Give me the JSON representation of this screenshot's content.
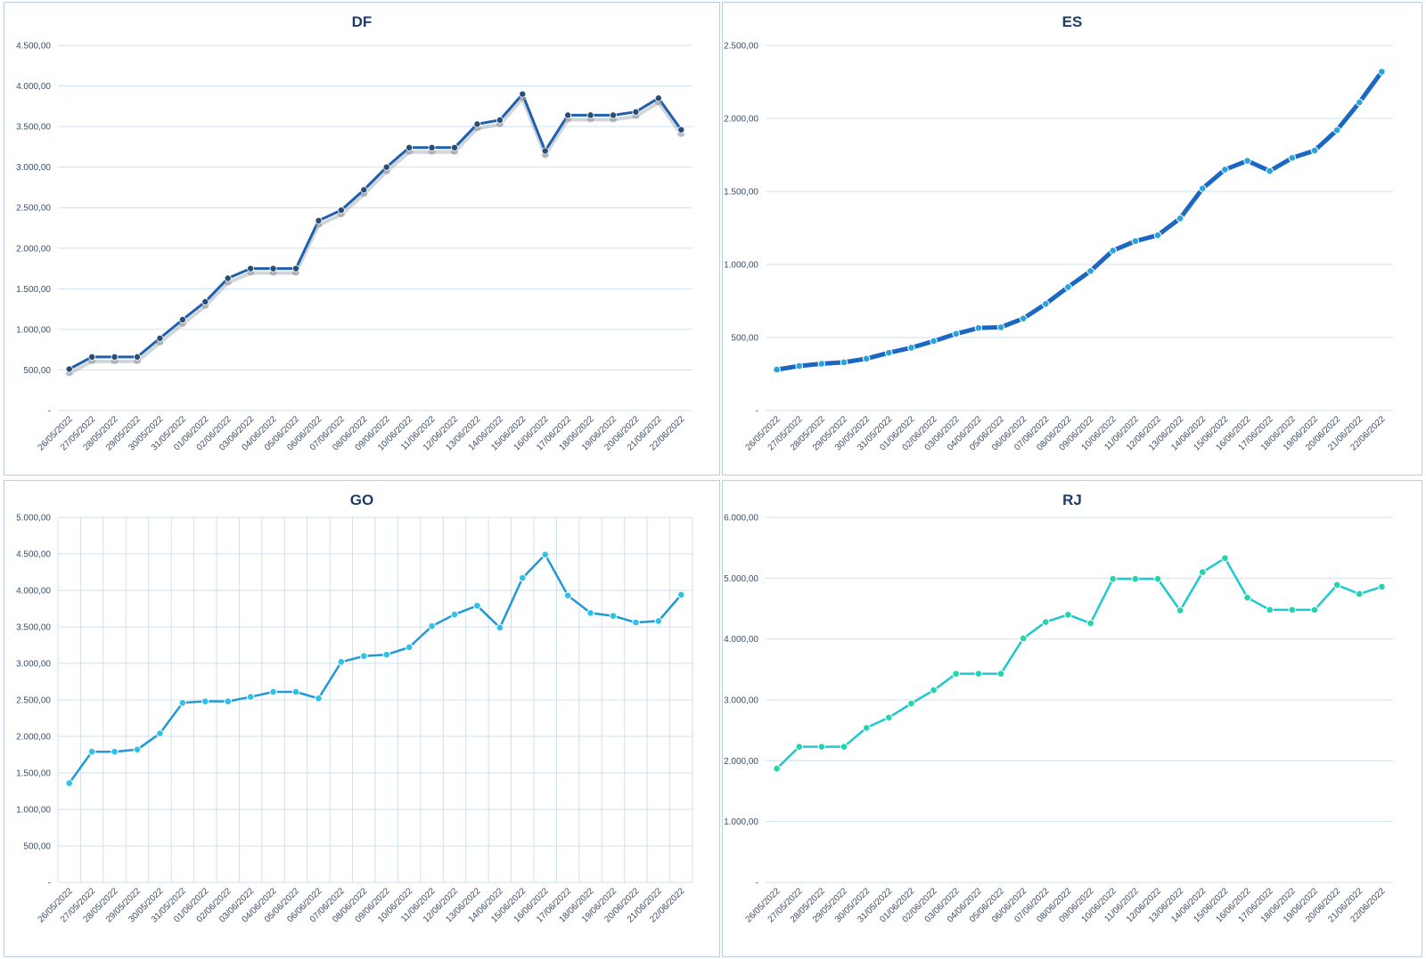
{
  "chart_data": [
    {
      "type": "line",
      "title": "DF",
      "categories": [
        "26/05/2022",
        "27/05/2022",
        "28/05/2022",
        "29/05/2022",
        "30/05/2022",
        "31/05/2022",
        "01/06/2022",
        "02/06/2022",
        "03/06/2022",
        "04/06/2022",
        "05/06/2022",
        "06/06/2022",
        "07/06/2022",
        "08/06/2022",
        "09/06/2022",
        "10/06/2022",
        "11/06/2022",
        "12/06/2022",
        "13/06/2022",
        "14/06/2022",
        "15/06/2022",
        "16/06/2022",
        "17/06/2022",
        "18/06/2022",
        "19/06/2022",
        "20/06/2022",
        "21/06/2022",
        "22/06/2022"
      ],
      "series": [
        {
          "values": [
            510,
            660,
            660,
            660,
            890,
            1120,
            1340,
            1630,
            1750,
            1750,
            1750,
            2340,
            2470,
            2720,
            3000,
            3240,
            3240,
            3240,
            3530,
            3580,
            3900,
            3200,
            3640,
            3640,
            3640,
            3680,
            3850,
            3460
          ]
        }
      ],
      "ylim": [
        0,
        4500
      ],
      "yticks": [
        "-",
        "500,00",
        "1.000,00",
        "1.500,00",
        "2.000,00",
        "2.500,00",
        "3.000,00",
        "3.500,00",
        "4.000,00",
        "4.500,00"
      ],
      "grid": "horizontal",
      "color": "#1f5fae",
      "marker_color": "#2a4d73",
      "line_width": 3
    },
    {
      "type": "line",
      "title": "ES",
      "categories": [
        "26/05/2022",
        "27/05/2022",
        "28/05/2022",
        "29/05/2022",
        "30/05/2022",
        "31/05/2022",
        "01/06/2022",
        "02/06/2022",
        "03/06/2022",
        "04/06/2022",
        "05/06/2022",
        "06/06/2022",
        "07/06/2022",
        "08/06/2022",
        "09/06/2022",
        "10/06/2022",
        "11/06/2022",
        "12/06/2022",
        "13/06/2022",
        "14/06/2022",
        "15/06/2022",
        "16/06/2022",
        "17/06/2022",
        "18/06/2022",
        "19/06/2022",
        "20/06/2022",
        "21/06/2022",
        "22/06/2022"
      ],
      "series": [
        {
          "values": [
            280,
            305,
            320,
            330,
            355,
            395,
            430,
            475,
            525,
            565,
            570,
            630,
            730,
            845,
            955,
            1095,
            1160,
            1200,
            1315,
            1520,
            1650,
            1710,
            1640,
            1730,
            1780,
            1920,
            2110,
            2320
          ]
        }
      ],
      "ylim": [
        0,
        2500
      ],
      "yticks": [
        "-",
        "500,00",
        "1.000,00",
        "1.500,00",
        "2.000,00",
        "2.500,00"
      ],
      "grid": "horizontal",
      "color": "#1b68c4",
      "marker_color": "#2aa3dc",
      "line_width": 5
    },
    {
      "type": "line",
      "title": "GO",
      "categories": [
        "26/05/2022",
        "27/05/2022",
        "28/05/2022",
        "29/05/2022",
        "30/05/2022",
        "31/05/2022",
        "01/06/2022",
        "02/06/2022",
        "03/06/2022",
        "04/06/2022",
        "05/06/2022",
        "06/06/2022",
        "07/06/2022",
        "08/06/2022",
        "09/06/2022",
        "10/06/2022",
        "11/06/2022",
        "12/06/2022",
        "13/06/2022",
        "14/06/2022",
        "15/06/2022",
        "16/06/2022",
        "17/06/2022",
        "18/06/2022",
        "19/06/2022",
        "20/06/2022",
        "21/06/2022",
        "22/06/2022"
      ],
      "series": [
        {
          "values": [
            1360,
            1790,
            1790,
            1820,
            2040,
            2460,
            2480,
            2480,
            2540,
            2610,
            2610,
            2520,
            3020,
            3100,
            3120,
            3220,
            3510,
            3670,
            3790,
            3490,
            4170,
            4490,
            3930,
            3690,
            3650,
            3560,
            3580,
            3940
          ]
        }
      ],
      "ylim": [
        0,
        5000
      ],
      "yticks": [
        "-",
        "500,00",
        "1.000,00",
        "1.500,00",
        "2.000,00",
        "2.500,00",
        "3.000,00",
        "3.500,00",
        "4.000,00",
        "4.500,00",
        "5.000,00"
      ],
      "grid": "both",
      "color": "#1f9ad6",
      "marker_color": "#2fc1e8",
      "line_width": 2.5
    },
    {
      "type": "line",
      "title": "RJ",
      "categories": [
        "26/05/2022",
        "27/05/2022",
        "28/05/2022",
        "29/05/2022",
        "30/05/2022",
        "31/05/2022",
        "01/06/2022",
        "02/06/2022",
        "03/06/2022",
        "04/06/2022",
        "05/06/2022",
        "06/06/2022",
        "07/06/2022",
        "08/06/2022",
        "09/06/2022",
        "10/06/2022",
        "11/06/2022",
        "12/06/2022",
        "13/06/2022",
        "14/06/2022",
        "15/06/2022",
        "16/06/2022",
        "17/06/2022",
        "18/06/2022",
        "19/06/2022",
        "20/06/2022",
        "21/06/2022",
        "22/06/2022"
      ],
      "series": [
        {
          "values": [
            1870,
            2230,
            2230,
            2230,
            2540,
            2710,
            2940,
            3160,
            3430,
            3430,
            3430,
            4010,
            4280,
            4400,
            4260,
            4990,
            4990,
            4990,
            4470,
            5100,
            5330,
            4680,
            4480,
            4480,
            4480,
            4890,
            4740,
            4860
          ]
        }
      ],
      "ylim": [
        0,
        6000
      ],
      "yticks": [
        "-",
        "1.000,00",
        "2.000,00",
        "3.000,00",
        "4.000,00",
        "5.000,00",
        "6.000,00"
      ],
      "grid": "horizontal",
      "color": "#1cc9cf",
      "marker_color": "#22d6a8",
      "line_width": 2.5
    }
  ]
}
